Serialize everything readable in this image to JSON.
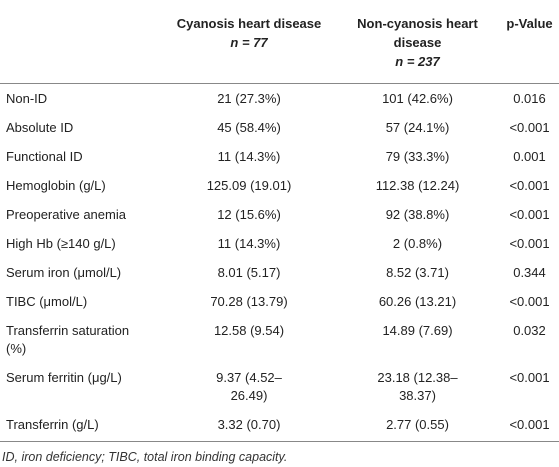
{
  "table": {
    "columns": [
      {
        "title": "Cyanosis heart disease",
        "n": "n = 77"
      },
      {
        "title": "Non-cyanosis heart disease",
        "n": "n = 237"
      },
      {
        "title": "p-Value"
      }
    ],
    "rows": [
      [
        "Non-ID",
        "21 (27.3%)",
        "101 (42.6%)",
        "0.016"
      ],
      [
        "Absolute ID",
        "45 (58.4%)",
        "57 (24.1%)",
        "<0.001"
      ],
      [
        "Functional ID",
        "11 (14.3%)",
        "79 (33.3%)",
        "0.001"
      ],
      [
        "Hemoglobin (g/L)",
        "125.09 (19.01)",
        "112.38 (12.24)",
        "<0.001"
      ],
      [
        "Preoperative anemia",
        "12 (15.6%)",
        "92 (38.8%)",
        "<0.001"
      ],
      [
        "High Hb (≥140 g/L)",
        "11 (14.3%)",
        "2 (0.8%)",
        "<0.001"
      ],
      [
        "Serum iron (μmol/L)",
        "8.01 (5.17)",
        "8.52 (3.71)",
        "0.344"
      ],
      [
        "TIBC (μmol/L)",
        "70.28 (13.79)",
        "60.26 (13.21)",
        "<0.001"
      ],
      [
        "Transferrin saturation (%)",
        "12.58 (9.54)",
        "14.89 (7.69)",
        "0.032"
      ],
      [
        "Serum ferritin (μg/L)",
        "9.37 (4.52–26.49)",
        "23.18 (12.38–38.37)",
        "<0.001"
      ],
      [
        "Transferrin (g/L)",
        "3.32 (0.70)",
        "2.77 (0.55)",
        "<0.001"
      ]
    ],
    "footnote": "ID, iron deficiency; TIBC, total iron binding capacity."
  }
}
